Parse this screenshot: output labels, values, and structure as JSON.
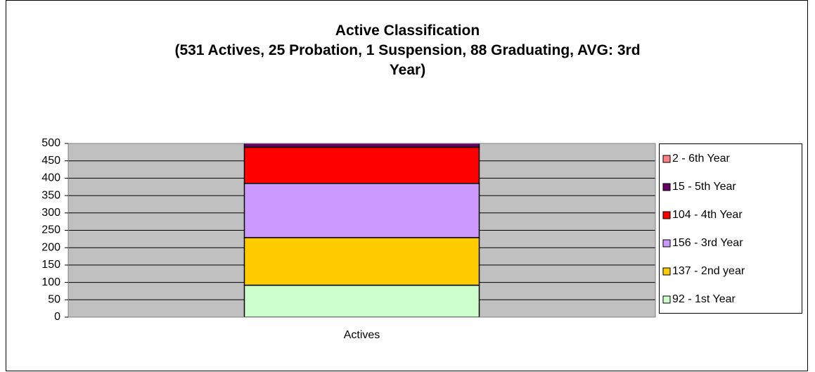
{
  "chart_data": {
    "type": "stacked_bar",
    "title": "Active Classification",
    "subtitle": "(531 Actives, 25 Probation, 1 Suspension, 88 Graduating, AVG: 3rd Year)",
    "categories": [
      "Actives"
    ],
    "series": [
      {
        "name": "92 - 1st Year",
        "color": "#ccffcc",
        "values": [
          92
        ]
      },
      {
        "name": "137 - 2nd year",
        "color": "#ffcc00",
        "values": [
          137
        ]
      },
      {
        "name": "156 - 3rd Year",
        "color": "#cc99ff",
        "values": [
          156
        ]
      },
      {
        "name": "104 - 4th Year",
        "color": "#ff0000",
        "values": [
          104
        ]
      },
      {
        "name": "15 - 5th Year",
        "color": "#660066",
        "values": [
          15
        ]
      },
      {
        "name": "2 - 6th Year",
        "color": "#ff8080",
        "values": [
          2
        ]
      }
    ],
    "ylim": [
      0,
      500
    ],
    "yticks": [
      0,
      50,
      100,
      150,
      200,
      250,
      300,
      350,
      400,
      450,
      500
    ],
    "grid": true,
    "legend": "right"
  }
}
